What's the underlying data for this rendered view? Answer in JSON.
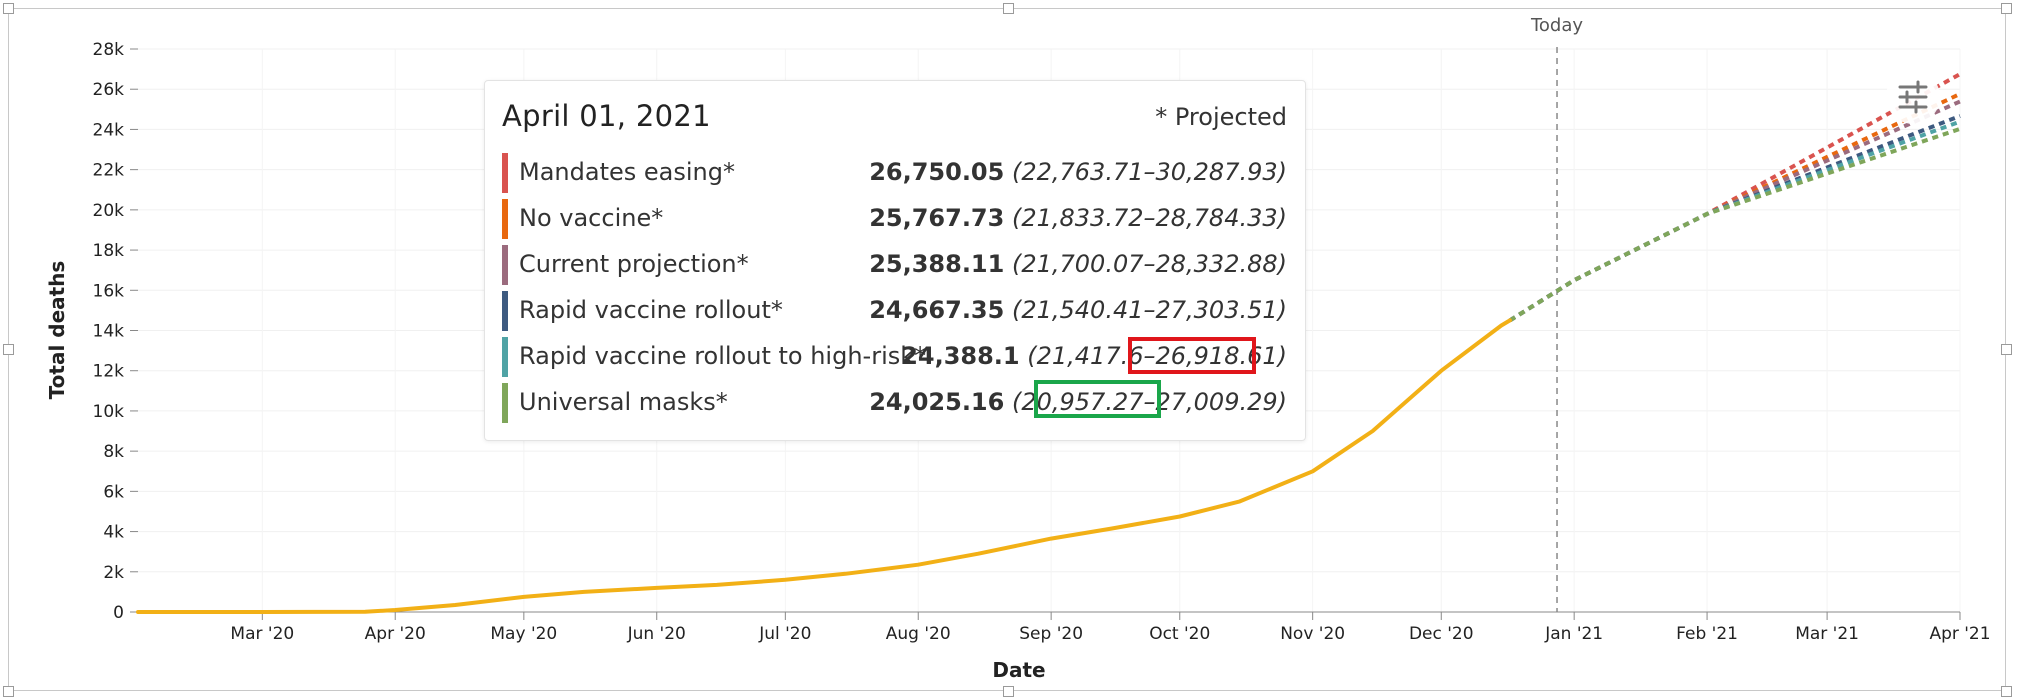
{
  "chart_data": {
    "type": "line",
    "xlabel": "Date",
    "ylabel": "Total deaths",
    "ylim": [
      0,
      28000
    ],
    "yticks": [
      "0",
      "2k",
      "4k",
      "6k",
      "8k",
      "10k",
      "12k",
      "14k",
      "16k",
      "18k",
      "20k",
      "22k",
      "24k",
      "26k",
      "28k"
    ],
    "xrange": [
      "2020-02-01",
      "2021-04-01"
    ],
    "xticks": [
      {
        "date": "2020-03-01",
        "label": "Mar '20"
      },
      {
        "date": "2020-04-01",
        "label": "Apr '20"
      },
      {
        "date": "2020-05-01",
        "label": "May '20"
      },
      {
        "date": "2020-06-01",
        "label": "Jun '20"
      },
      {
        "date": "2020-07-01",
        "label": "Jul '20"
      },
      {
        "date": "2020-08-01",
        "label": "Aug '20"
      },
      {
        "date": "2020-09-01",
        "label": "Sep '20"
      },
      {
        "date": "2020-10-01",
        "label": "Oct '20"
      },
      {
        "date": "2020-11-01",
        "label": "Nov '20"
      },
      {
        "date": "2020-12-01",
        "label": "Dec '20"
      },
      {
        "date": "2021-01-01",
        "label": "Jan '21"
      },
      {
        "date": "2021-02-01",
        "label": "Feb '21"
      },
      {
        "date": "2021-03-01",
        "label": "Mar '21"
      },
      {
        "date": "2021-04-01",
        "label": "Apr '21"
      }
    ],
    "grid": true,
    "today": {
      "date": "2020-12-28",
      "label": "Today"
    },
    "observed": {
      "color": "#f2b016",
      "points": [
        [
          "2020-02-01",
          0
        ],
        [
          "2020-03-01",
          0
        ],
        [
          "2020-03-25",
          10
        ],
        [
          "2020-04-01",
          100
        ],
        [
          "2020-04-15",
          350
        ],
        [
          "2020-05-01",
          750
        ],
        [
          "2020-05-15",
          1000
        ],
        [
          "2020-06-01",
          1200
        ],
        [
          "2020-06-15",
          1350
        ],
        [
          "2020-07-01",
          1600
        ],
        [
          "2020-07-15",
          1900
        ],
        [
          "2020-08-01",
          2350
        ],
        [
          "2020-08-15",
          2900
        ],
        [
          "2020-09-01",
          3650
        ],
        [
          "2020-09-15",
          4150
        ],
        [
          "2020-10-01",
          4750
        ],
        [
          "2020-10-15",
          5500
        ],
        [
          "2020-11-01",
          7000
        ],
        [
          "2020-11-15",
          9000
        ],
        [
          "2020-12-01",
          12000
        ],
        [
          "2020-12-15",
          14250
        ],
        [
          "2020-12-17",
          14500
        ]
      ]
    },
    "projection_start": [
      "2020-12-17",
      14500
    ],
    "projection_mid": [
      [
        "2021-01-01",
        16500
      ],
      [
        "2021-02-01",
        19800
      ]
    ],
    "series": [
      {
        "name": "Mandates easing*",
        "color": "#d9534f",
        "end": 26750.05,
        "ci": "(22,763.71–30,287.93)",
        "value_label": "26,750.05"
      },
      {
        "name": "No vaccine*",
        "color": "#e8680f",
        "end": 25767.73,
        "ci": "(21,833.72–28,784.33)",
        "value_label": "25,767.73"
      },
      {
        "name": "Current projection*",
        "color": "#9b6b7e",
        "end": 25388.11,
        "ci": "(21,700.07–28,332.88)",
        "value_label": "25,388.11"
      },
      {
        "name": "Rapid vaccine rollout*",
        "color": "#3d5a80",
        "end": 24667.35,
        "ci": "(21,540.41–27,303.51)",
        "value_label": "24,667.35"
      },
      {
        "name": "Rapid vaccine rollout to high-risk*",
        "color": "#4fa3a5",
        "end": 24388.1,
        "ci": "(21,417.6–26,918.61)",
        "value_label": "24,388.1"
      },
      {
        "name": "Universal masks*",
        "color": "#7fa65a",
        "end": 24025.16,
        "ci": "(20,957.27–27,009.29)",
        "value_label": "24,025.16"
      }
    ]
  },
  "tooltip": {
    "date": "April 01, 2021",
    "projected_note": "* Projected"
  },
  "icons": {
    "settings": "sliders-icon"
  },
  "highlights": {
    "red": "#e0161b",
    "green": "#1aa64a"
  }
}
